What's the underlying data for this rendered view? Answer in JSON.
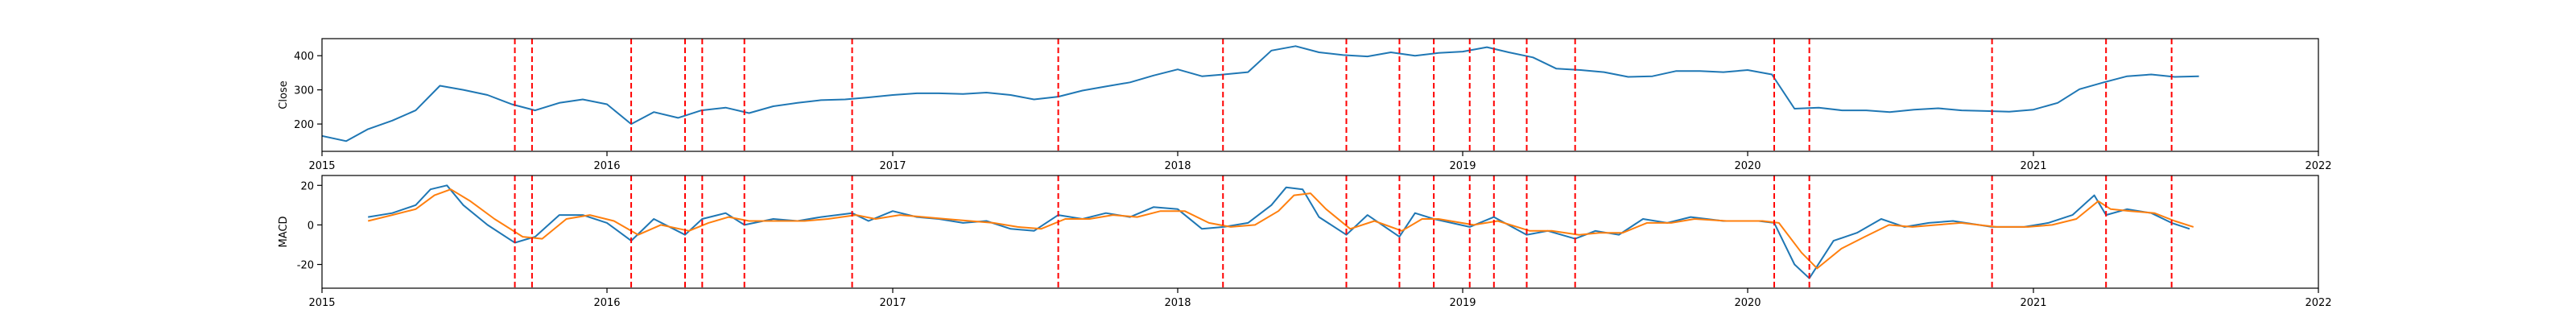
{
  "chart_data": [
    {
      "type": "line",
      "ylabel": "Close",
      "xlabel": "",
      "title": "",
      "x_range": [
        "2015-01-01",
        "2022-01-01"
      ],
      "x_ticks": [
        "2015",
        "2016",
        "2017",
        "2018",
        "2019",
        "2020",
        "2021",
        "2022"
      ],
      "ylim": [
        120,
        450
      ],
      "y_ticks": [
        200,
        300,
        400
      ],
      "grid": false,
      "series": [
        {
          "color": "#1f77b4",
          "points": [
            [
              "2015-01-01",
              165
            ],
            [
              "2015-02-01",
              150
            ],
            [
              "2015-03-01",
              185
            ],
            [
              "2015-04-01",
              210
            ],
            [
              "2015-05-01",
              240
            ],
            [
              "2015-06-01",
              312
            ],
            [
              "2015-07-01",
              300
            ],
            [
              "2015-08-01",
              285
            ],
            [
              "2015-09-01",
              258
            ],
            [
              "2015-10-01",
              240
            ],
            [
              "2015-11-01",
              262
            ],
            [
              "2015-12-01",
              272
            ],
            [
              "2016-01-01",
              258
            ],
            [
              "2016-02-01",
              200
            ],
            [
              "2016-03-01",
              235
            ],
            [
              "2016-04-01",
              218
            ],
            [
              "2016-05-01",
              240
            ],
            [
              "2016-06-01",
              248
            ],
            [
              "2016-07-01",
              232
            ],
            [
              "2016-08-01",
              252
            ],
            [
              "2016-09-01",
              262
            ],
            [
              "2016-10-01",
              270
            ],
            [
              "2016-11-01",
              272
            ],
            [
              "2016-12-01",
              278
            ],
            [
              "2017-01-01",
              285
            ],
            [
              "2017-02-01",
              290
            ],
            [
              "2017-03-01",
              290
            ],
            [
              "2017-04-01",
              288
            ],
            [
              "2017-05-01",
              292
            ],
            [
              "2017-06-01",
              285
            ],
            [
              "2017-07-01",
              272
            ],
            [
              "2017-08-01",
              280
            ],
            [
              "2017-09-01",
              298
            ],
            [
              "2017-10-01",
              310
            ],
            [
              "2017-11-01",
              322
            ],
            [
              "2017-12-01",
              342
            ],
            [
              "2018-01-01",
              360
            ],
            [
              "2018-02-01",
              340
            ],
            [
              "2018-03-01",
              345
            ],
            [
              "2018-04-01",
              352
            ],
            [
              "2018-05-01",
              415
            ],
            [
              "2018-06-01",
              428
            ],
            [
              "2018-07-01",
              410
            ],
            [
              "2018-08-01",
              402
            ],
            [
              "2018-09-01",
              398
            ],
            [
              "2018-10-01",
              410
            ],
            [
              "2018-11-01",
              400
            ],
            [
              "2018-12-01",
              408
            ],
            [
              "2019-01-01",
              412
            ],
            [
              "2019-02-01",
              425
            ],
            [
              "2019-03-01",
              410
            ],
            [
              "2019-04-01",
              395
            ],
            [
              "2019-05-01",
              362
            ],
            [
              "2019-06-01",
              358
            ],
            [
              "2019-07-01",
              352
            ],
            [
              "2019-08-01",
              338
            ],
            [
              "2019-09-01",
              340
            ],
            [
              "2019-10-01",
              355
            ],
            [
              "2019-11-01",
              355
            ],
            [
              "2019-12-01",
              352
            ],
            [
              "2020-01-01",
              358
            ],
            [
              "2020-02-01",
              345
            ],
            [
              "2020-03-01",
              245
            ],
            [
              "2020-04-01",
              248
            ],
            [
              "2020-05-01",
              240
            ],
            [
              "2020-06-01",
              240
            ],
            [
              "2020-07-01",
              235
            ],
            [
              "2020-08-01",
              242
            ],
            [
              "2020-09-01",
              246
            ],
            [
              "2020-10-01",
              240
            ],
            [
              "2020-11-01",
              238
            ],
            [
              "2020-12-01",
              236
            ],
            [
              "2021-01-01",
              242
            ],
            [
              "2021-02-01",
              262
            ],
            [
              "2021-03-01",
              302
            ],
            [
              "2021-04-01",
              322
            ],
            [
              "2021-05-01",
              340
            ],
            [
              "2021-06-01",
              345
            ],
            [
              "2021-07-01",
              338
            ],
            [
              "2021-08-01",
              340
            ]
          ]
        }
      ],
      "vlines": [
        "2015-09-05",
        "2015-09-27",
        "2016-02-01",
        "2016-04-10",
        "2016-05-02",
        "2016-06-25",
        "2016-11-10",
        "2017-08-01",
        "2018-02-28",
        "2018-08-05",
        "2018-10-12",
        "2018-11-25",
        "2019-01-10",
        "2019-02-10",
        "2019-03-24",
        "2019-05-25",
        "2020-02-04",
        "2020-03-20",
        "2020-11-09",
        "2021-04-04",
        "2021-06-27"
      ],
      "vline_color": "#ff0000"
    },
    {
      "type": "line",
      "ylabel": "MACD",
      "xlabel": "",
      "title": "",
      "x_range": [
        "2015-01-01",
        "2022-01-01"
      ],
      "x_ticks": [
        "2015",
        "2016",
        "2017",
        "2018",
        "2019",
        "2020",
        "2021",
        "2022"
      ],
      "ylim": [
        -32,
        25
      ],
      "y_ticks": [
        -20,
        0,
        20
      ],
      "grid": false,
      "series": [
        {
          "color": "#1f77b4",
          "points": [
            [
              "2015-03-01",
              4
            ],
            [
              "2015-04-01",
              6
            ],
            [
              "2015-05-01",
              10
            ],
            [
              "2015-05-20",
              18
            ],
            [
              "2015-06-10",
              20
            ],
            [
              "2015-07-01",
              10
            ],
            [
              "2015-08-01",
              0
            ],
            [
              "2015-09-05",
              -9
            ],
            [
              "2015-10-01",
              -6
            ],
            [
              "2015-11-01",
              5
            ],
            [
              "2015-12-01",
              5
            ],
            [
              "2016-01-01",
              1
            ],
            [
              "2016-02-01",
              -8
            ],
            [
              "2016-03-01",
              3
            ],
            [
              "2016-04-10",
              -5
            ],
            [
              "2016-05-02",
              3
            ],
            [
              "2016-06-01",
              6
            ],
            [
              "2016-06-25",
              0
            ],
            [
              "2016-08-01",
              3
            ],
            [
              "2016-09-01",
              2
            ],
            [
              "2016-10-01",
              4
            ],
            [
              "2016-11-10",
              6
            ],
            [
              "2016-12-01",
              2
            ],
            [
              "2017-01-01",
              7
            ],
            [
              "2017-02-01",
              4
            ],
            [
              "2017-03-01",
              3
            ],
            [
              "2017-04-01",
              1
            ],
            [
              "2017-05-01",
              2
            ],
            [
              "2017-06-01",
              -2
            ],
            [
              "2017-07-01",
              -3
            ],
            [
              "2017-08-01",
              5
            ],
            [
              "2017-09-01",
              3
            ],
            [
              "2017-10-01",
              6
            ],
            [
              "2017-11-01",
              4
            ],
            [
              "2017-12-01",
              9
            ],
            [
              "2018-01-01",
              8
            ],
            [
              "2018-02-01",
              -2
            ],
            [
              "2018-03-01",
              -1
            ],
            [
              "2018-04-01",
              1
            ],
            [
              "2018-05-01",
              10
            ],
            [
              "2018-05-20",
              19
            ],
            [
              "2018-06-10",
              18
            ],
            [
              "2018-07-01",
              4
            ],
            [
              "2018-08-05",
              -5
            ],
            [
              "2018-09-01",
              5
            ],
            [
              "2018-10-12",
              -6
            ],
            [
              "2018-11-01",
              6
            ],
            [
              "2018-11-25",
              3
            ],
            [
              "2019-01-10",
              -1
            ],
            [
              "2019-02-10",
              4
            ],
            [
              "2019-03-24",
              -5
            ],
            [
              "2019-04-20",
              -3
            ],
            [
              "2019-05-25",
              -7
            ],
            [
              "2019-06-20",
              -3
            ],
            [
              "2019-07-20",
              -5
            ],
            [
              "2019-08-20",
              3
            ],
            [
              "2019-09-20",
              1
            ],
            [
              "2019-10-20",
              4
            ],
            [
              "2019-12-01",
              2
            ],
            [
              "2020-01-15",
              2
            ],
            [
              "2020-02-04",
              1
            ],
            [
              "2020-03-01",
              -20
            ],
            [
              "2020-03-20",
              -27
            ],
            [
              "2020-04-20",
              -8
            ],
            [
              "2020-05-20",
              -4
            ],
            [
              "2020-06-20",
              3
            ],
            [
              "2020-07-20",
              -1
            ],
            [
              "2020-08-20",
              1
            ],
            [
              "2020-09-20",
              2
            ],
            [
              "2020-11-09",
              -1
            ],
            [
              "2020-12-20",
              -1
            ],
            [
              "2021-01-20",
              1
            ],
            [
              "2021-02-20",
              5
            ],
            [
              "2021-03-20",
              15
            ],
            [
              "2021-04-04",
              5
            ],
            [
              "2021-05-01",
              8
            ],
            [
              "2021-06-01",
              6
            ],
            [
              "2021-06-27",
              1
            ],
            [
              "2021-07-20",
              -2
            ]
          ]
        },
        {
          "color": "#ff7f0e",
          "points": [
            [
              "2015-03-01",
              2
            ],
            [
              "2015-04-01",
              5
            ],
            [
              "2015-05-01",
              8
            ],
            [
              "2015-05-25",
              15
            ],
            [
              "2015-06-15",
              18
            ],
            [
              "2015-07-10",
              12
            ],
            [
              "2015-08-10",
              3
            ],
            [
              "2015-09-15",
              -6
            ],
            [
              "2015-10-10",
              -7
            ],
            [
              "2015-11-10",
              3
            ],
            [
              "2015-12-10",
              5
            ],
            [
              "2016-01-10",
              2
            ],
            [
              "2016-02-10",
              -5
            ],
            [
              "2016-03-10",
              0
            ],
            [
              "2016-04-15",
              -3
            ],
            [
              "2016-05-10",
              1
            ],
            [
              "2016-06-05",
              4
            ],
            [
              "2016-07-01",
              2
            ],
            [
              "2016-08-10",
              2
            ],
            [
              "2016-09-10",
              2
            ],
            [
              "2016-10-10",
              3
            ],
            [
              "2016-11-15",
              5
            ],
            [
              "2016-12-10",
              3
            ],
            [
              "2017-01-10",
              5
            ],
            [
              "2017-02-10",
              4
            ],
            [
              "2017-03-10",
              3
            ],
            [
              "2017-04-10",
              2
            ],
            [
              "2017-05-10",
              1
            ],
            [
              "2017-06-10",
              -1
            ],
            [
              "2017-07-10",
              -2
            ],
            [
              "2017-08-10",
              3
            ],
            [
              "2017-09-10",
              3
            ],
            [
              "2017-10-10",
              5
            ],
            [
              "2017-11-10",
              4
            ],
            [
              "2017-12-10",
              7
            ],
            [
              "2018-01-10",
              7
            ],
            [
              "2018-02-10",
              1
            ],
            [
              "2018-03-10",
              -1
            ],
            [
              "2018-04-10",
              0
            ],
            [
              "2018-05-10",
              7
            ],
            [
              "2018-05-30",
              15
            ],
            [
              "2018-06-20",
              16
            ],
            [
              "2018-07-10",
              8
            ],
            [
              "2018-08-10",
              -2
            ],
            [
              "2018-09-10",
              2
            ],
            [
              "2018-10-15",
              -3
            ],
            [
              "2018-11-10",
              3
            ],
            [
              "2018-12-01",
              3
            ],
            [
              "2019-01-15",
              0
            ],
            [
              "2019-02-15",
              2
            ],
            [
              "2019-03-28",
              -3
            ],
            [
              "2019-04-25",
              -3
            ],
            [
              "2019-05-30",
              -5
            ],
            [
              "2019-06-25",
              -4
            ],
            [
              "2019-07-25",
              -4
            ],
            [
              "2019-08-25",
              1
            ],
            [
              "2019-09-25",
              1
            ],
            [
              "2019-10-25",
              3
            ],
            [
              "2019-12-05",
              2
            ],
            [
              "2020-01-20",
              2
            ],
            [
              "2020-02-10",
              1
            ],
            [
              "2020-03-10",
              -14
            ],
            [
              "2020-03-30",
              -22
            ],
            [
              "2020-04-30",
              -12
            ],
            [
              "2020-05-30",
              -6
            ],
            [
              "2020-06-30",
              0
            ],
            [
              "2020-07-30",
              -1
            ],
            [
              "2020-08-30",
              0
            ],
            [
              "2020-09-30",
              1
            ],
            [
              "2020-11-15",
              -1
            ],
            [
              "2020-12-25",
              -1
            ],
            [
              "2021-01-25",
              0
            ],
            [
              "2021-02-25",
              3
            ],
            [
              "2021-03-25",
              12
            ],
            [
              "2021-04-10",
              8
            ],
            [
              "2021-05-05",
              7
            ],
            [
              "2021-06-05",
              6
            ],
            [
              "2021-07-01",
              2
            ],
            [
              "2021-07-25",
              -1
            ]
          ]
        }
      ],
      "vlines": [
        "2015-09-05",
        "2015-09-27",
        "2016-02-01",
        "2016-04-10",
        "2016-05-02",
        "2016-06-25",
        "2016-11-10",
        "2017-08-01",
        "2018-02-28",
        "2018-08-05",
        "2018-10-12",
        "2018-11-25",
        "2019-01-10",
        "2019-02-10",
        "2019-03-24",
        "2019-05-25",
        "2020-02-04",
        "2020-03-20",
        "2020-11-09",
        "2021-04-04",
        "2021-06-27"
      ],
      "vline_color": "#ff0000"
    }
  ]
}
